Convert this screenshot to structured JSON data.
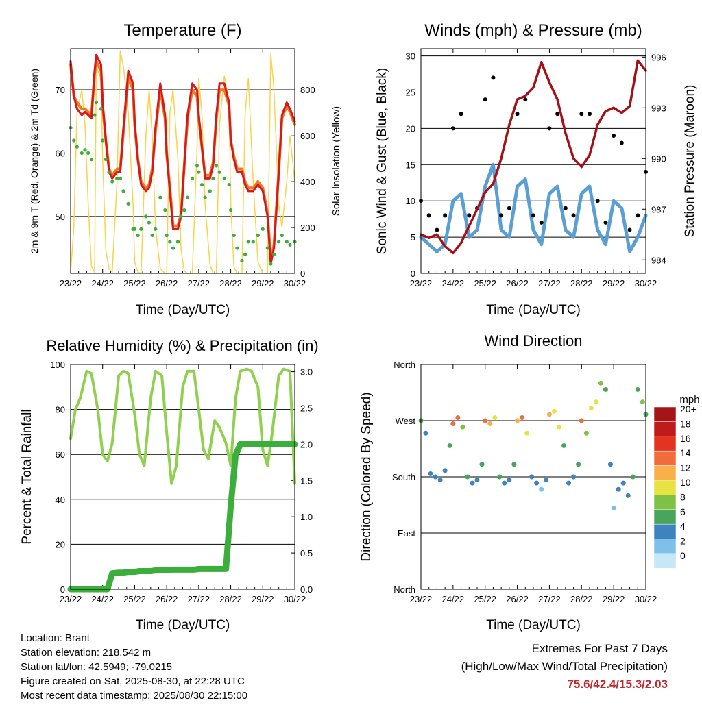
{
  "x_ticks": [
    "23/22",
    "24/22",
    "25/22",
    "26/22",
    "27/22",
    "28/22",
    "29/22",
    "30/22"
  ],
  "info": {
    "location": "Location: Brant",
    "elevation": "Station elevation: 218.542 m",
    "latlon": "Station lat/lon: 42.5949; -79.0215",
    "created": "Figure created on Sat, 2025-08-30, at 22:28 UTC",
    "recent": "Most recent data timestamp: 2025/08/30 22:15:00"
  },
  "extremes": {
    "line1": "Extremes For Past 7 Days",
    "line2": "(High/Low/Max Wind/Total Precipitation)",
    "values": "75.6/42.4/15.3/2.03"
  },
  "colors": {
    "t2m": "#d7191c",
    "t9m": "#f07820",
    "td": "#3cae3c",
    "solar": "#f7d44a",
    "wind": "#5a9fd4",
    "gust": "#000000",
    "pressure": "#a50f15",
    "rh": "#8fd14f",
    "precip": "#3cae3c"
  },
  "chart_data": [
    {
      "type": "line",
      "title": "Temperature (F)",
      "xlabel": "Time (Day/UTC)",
      "ylabel": "2m & 9m T (Red, Orange) & 2m Td (Green)",
      "y2label": "Solar Insolation (Yellow)",
      "x": [
        0,
        0.1,
        0.2,
        0.35,
        0.45,
        0.55,
        0.65,
        0.75,
        0.8,
        0.95,
        1.0,
        1.1,
        1.2,
        1.3,
        1.45,
        1.55,
        1.65,
        1.8,
        1.95,
        2.0,
        2.1,
        2.2,
        2.35,
        2.45,
        2.55,
        2.65,
        2.8,
        2.95,
        3.0,
        3.1,
        3.2,
        3.35,
        3.45,
        3.55,
        3.65,
        3.8,
        3.95,
        4.0,
        4.1,
        4.2,
        4.35,
        4.45,
        4.55,
        4.65,
        4.8,
        4.95,
        5.0,
        5.1,
        5.2,
        5.35,
        5.45,
        5.55,
        5.7,
        5.85,
        6.0,
        6.15,
        6.25,
        6.35,
        6.5,
        6.6,
        6.75,
        6.85,
        7.0
      ],
      "ylim": [
        41,
        76.5
      ],
      "y2lim": [
        0,
        980
      ],
      "series": [
        {
          "name": "2m T",
          "axis": "left",
          "values": [
            74.5,
            69,
            67,
            66,
            66.5,
            66,
            65.5,
            73,
            75.5,
            74,
            68,
            62,
            57,
            56,
            57,
            57,
            64,
            73,
            71,
            65,
            59,
            55,
            54,
            54.5,
            57,
            64,
            71,
            66,
            60,
            54,
            48,
            48,
            50,
            58,
            66,
            71,
            70,
            66,
            61,
            56,
            56,
            58,
            66,
            71,
            71,
            68,
            62,
            59,
            57,
            57,
            55,
            54,
            54,
            55,
            54,
            50,
            42.5,
            45,
            57,
            66,
            68,
            67,
            65
          ]
        },
        {
          "name": "9m T",
          "axis": "left",
          "values": [
            74,
            69,
            68,
            67,
            67,
            66.5,
            66,
            72.5,
            74.5,
            73,
            67.5,
            62,
            57.5,
            56.5,
            57.5,
            57.5,
            63.5,
            72,
            70,
            64.5,
            59,
            55.5,
            54.5,
            55,
            57.5,
            63.5,
            70,
            65.5,
            60,
            54.5,
            48.5,
            48.5,
            50.5,
            58,
            65.5,
            70,
            69,
            65.5,
            61,
            56.5,
            56.5,
            58.5,
            65.5,
            70,
            70,
            67.5,
            62,
            59.5,
            57.5,
            57.5,
            55.5,
            54.5,
            54.5,
            55.5,
            54.5,
            50.5,
            43,
            45.5,
            57,
            65.5,
            67.5,
            66.5,
            64.5
          ]
        },
        {
          "name": "2m Td",
          "axis": "left",
          "values": [
            64,
            62,
            61,
            60,
            60.5,
            60,
            59,
            66,
            68,
            67,
            62,
            59,
            57,
            55.5,
            56,
            56,
            54,
            52,
            48,
            48,
            47,
            48,
            50,
            49,
            47,
            48,
            53,
            51,
            47,
            46,
            45,
            46,
            50,
            51,
            53,
            56,
            58,
            57,
            55,
            53,
            54,
            56,
            58,
            57,
            56,
            55,
            51,
            47,
            45,
            43,
            44,
            46,
            46,
            47,
            48,
            45,
            42.5,
            44,
            46,
            47,
            46,
            45.5,
            46
          ]
        },
        {
          "name": "Solar Insolation",
          "axis": "right",
          "values": [
            5,
            200,
            700,
            800,
            650,
            300,
            30,
            5,
            900,
            850,
            500,
            100,
            20,
            5,
            400,
            970,
            900,
            700,
            300,
            50,
            5,
            0,
            600,
            800,
            600,
            200,
            20,
            0,
            0,
            700,
            800,
            500,
            100,
            10,
            0,
            0,
            550,
            850,
            700,
            300,
            40,
            0,
            0,
            650,
            860,
            750,
            300,
            30,
            0,
            0,
            700,
            850,
            400,
            50,
            0,
            0,
            960,
            800,
            300,
            200,
            400,
            600,
            400
          ]
        }
      ]
    },
    {
      "type": "line",
      "title": "Winds (mph) & Pressure (mb)",
      "xlabel": "Time (Day/UTC)",
      "ylabel": "Sonic Wind & Gust (Blue, Black)",
      "y2label": "Station Pressure (Maroon)",
      "x": [
        0,
        0.25,
        0.5,
        0.75,
        1.0,
        1.25,
        1.5,
        1.75,
        2.0,
        2.25,
        2.5,
        2.75,
        3.0,
        3.25,
        3.5,
        3.75,
        4.0,
        4.25,
        4.5,
        4.75,
        5.0,
        5.25,
        5.5,
        5.75,
        6.0,
        6.25,
        6.5,
        6.75,
        7.0
      ],
      "ylim": [
        0,
        31
      ],
      "y2lim": [
        983.2,
        996.5
      ],
      "series": [
        {
          "name": "Sonic Wind",
          "axis": "left",
          "values": [
            5,
            4,
            3,
            4,
            10,
            11,
            5,
            6,
            12,
            15,
            6,
            5,
            12,
            13,
            6,
            4,
            11,
            12,
            6,
            5,
            11,
            12,
            6,
            4,
            10,
            9,
            3,
            5,
            8
          ]
        },
        {
          "name": "Gust",
          "axis": "left",
          "values": [
            10,
            8,
            6,
            8,
            20,
            22,
            8,
            9,
            24,
            27,
            8,
            9,
            22,
            24,
            8,
            7,
            20,
            22,
            9,
            8,
            22,
            22,
            10,
            7,
            19,
            18,
            6,
            8,
            14
          ]
        },
        {
          "name": "Station Pressure",
          "axis": "right",
          "values": [
            985.5,
            985.3,
            985.5,
            984.8,
            984.4,
            985,
            986,
            987,
            988,
            988.5,
            990,
            992,
            993.5,
            993.7,
            994.2,
            995.7,
            994.5,
            993.5,
            991.5,
            990,
            989.5,
            990.2,
            992,
            992.8,
            993.0,
            992.7,
            993.1,
            995.8,
            995.2
          ]
        }
      ]
    },
    {
      "type": "line",
      "title": "Relative Humidity (%) & Precipitation (in)",
      "xlabel": "Time (Day/UTC)",
      "ylabel": "Percent & Total Rainfall",
      "x": [
        0,
        0.15,
        0.3,
        0.5,
        0.65,
        0.85,
        1.0,
        1.15,
        1.3,
        1.5,
        1.65,
        1.8,
        2.0,
        2.15,
        2.3,
        2.5,
        2.65,
        2.85,
        3.0,
        3.15,
        3.3,
        3.5,
        3.65,
        3.85,
        4.0,
        4.15,
        4.3,
        4.5,
        4.65,
        4.85,
        5.0,
        5.15,
        5.3,
        5.5,
        5.65,
        5.85,
        6.0,
        6.15,
        6.3,
        6.5,
        6.65,
        6.85,
        7.0
      ],
      "ylim": [
        0,
        100
      ],
      "y2lim": [
        0,
        3.1
      ],
      "series": [
        {
          "name": "Relative Humidity",
          "axis": "left",
          "values": [
            67,
            80,
            85,
            97,
            96,
            80,
            60,
            57,
            65,
            95,
            97,
            96,
            78,
            60,
            55,
            85,
            97,
            95,
            70,
            47,
            55,
            90,
            97,
            97,
            80,
            62,
            58,
            75,
            72,
            65,
            55,
            85,
            97,
            98,
            97,
            90,
            62,
            55,
            70,
            95,
            98,
            97,
            47
          ]
        },
        {
          "name": "Precipitation",
          "axis": "right",
          "values": [
            0,
            0,
            0,
            0,
            0,
            0,
            0,
            0,
            0.22,
            0.23,
            0.23,
            0.24,
            0.24,
            0.25,
            0.25,
            0.25,
            0.26,
            0.26,
            0.26,
            0.27,
            0.27,
            0.27,
            0.27,
            0.27,
            0.28,
            0.28,
            0.28,
            0.28,
            0.28,
            0.28,
            1.15,
            1.85,
            2.0,
            2.0,
            2.0,
            2.0,
            2.0,
            2.0,
            2.0,
            2.0,
            2.0,
            2.0,
            2.0
          ]
        }
      ]
    },
    {
      "type": "scatter",
      "title": "Wind Direction",
      "xlabel": "Time (Day/UTC)",
      "ylabel": "Direction (Colored By Speed)",
      "y_tick_labels": [
        "North",
        "East",
        "South",
        "West",
        "North"
      ],
      "ylim": [
        0,
        360
      ],
      "x": [
        0,
        0.15,
        0.3,
        0.45,
        0.6,
        0.75,
        0.9,
        1.0,
        1.15,
        1.3,
        1.45,
        1.6,
        1.75,
        1.9,
        2.0,
        2.15,
        2.3,
        2.45,
        2.6,
        2.75,
        2.9,
        3.0,
        3.15,
        3.3,
        3.45,
        3.6,
        3.75,
        3.9,
        4.0,
        4.15,
        4.3,
        4.45,
        4.6,
        4.75,
        4.9,
        5.0,
        5.15,
        5.3,
        5.45,
        5.6,
        5.75,
        5.9,
        6.0,
        6.15,
        6.3,
        6.45,
        6.6,
        6.75,
        6.9,
        7.0
      ],
      "y": [
        270,
        250,
        185,
        180,
        175,
        190,
        230,
        265,
        275,
        260,
        180,
        170,
        175,
        200,
        270,
        265,
        275,
        180,
        170,
        175,
        200,
        270,
        275,
        250,
        180,
        170,
        160,
        175,
        280,
        285,
        260,
        230,
        170,
        180,
        200,
        270,
        250,
        290,
        300,
        330,
        320,
        200,
        130,
        160,
        170,
        150,
        180,
        320,
        300,
        280
      ],
      "speed": [
        6,
        4,
        3,
        4,
        3,
        3,
        5,
        14,
        13,
        8,
        5,
        3,
        4,
        6,
        13,
        12,
        10,
        5,
        3,
        3,
        6,
        12,
        13,
        9,
        4,
        3,
        2,
        4,
        11,
        10,
        9,
        5,
        3,
        4,
        5,
        13,
        8,
        10,
        9,
        8,
        6,
        3,
        2,
        3,
        4,
        3,
        5,
        6,
        7,
        6
      ],
      "colorbar": {
        "title": "mph",
        "labels": [
          "20+",
          "18",
          "16",
          "14",
          "12",
          "10",
          "8",
          "6",
          "4",
          "2",
          "0"
        ]
      }
    }
  ]
}
